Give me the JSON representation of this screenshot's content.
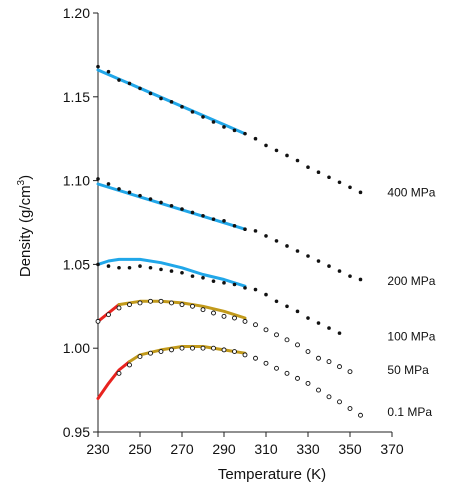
{
  "chart_data": {
    "type": "scatter",
    "xlabel": "Temperature (K)",
    "ylabel_main": "Density (g/cm",
    "ylabel_sup": "3",
    "ylabel_close": ")",
    "xlim": [
      230,
      370
    ],
    "ylim": [
      0.95,
      1.2
    ],
    "xticks": [
      {
        "value": 230,
        "label": "230"
      },
      {
        "value": 250,
        "label": "250"
      },
      {
        "value": 270,
        "label": "270"
      },
      {
        "value": 290,
        "label": "290"
      },
      {
        "value": 310,
        "label": "310"
      },
      {
        "value": 330,
        "label": "330"
      },
      {
        "value": 350,
        "label": "350"
      },
      {
        "value": 370,
        "label": "370"
      }
    ],
    "yticks": [
      {
        "value": 0.95,
        "label": "0.95"
      },
      {
        "value": 1.0,
        "label": "1.00"
      },
      {
        "value": 1.05,
        "label": "1.05"
      },
      {
        "value": 1.1,
        "label": "1.10"
      },
      {
        "value": 1.15,
        "label": "1.15"
      },
      {
        "value": 1.2,
        "label": "1.20"
      }
    ],
    "grid": false,
    "colors": {
      "blue": "#21a7e9",
      "gold": "#c29a1b",
      "red": "#e8231f",
      "dot": "#111111"
    },
    "series": [
      {
        "name": "400 MPa",
        "label_anchor": [
          364,
          1.093
        ],
        "marker": "filled",
        "points": [
          [
            230,
            1.168
          ],
          [
            235,
            1.165
          ],
          [
            240,
            1.16
          ],
          [
            245,
            1.158
          ],
          [
            250,
            1.155
          ],
          [
            255,
            1.152
          ],
          [
            260,
            1.149
          ],
          [
            265,
            1.147
          ],
          [
            270,
            1.144
          ],
          [
            275,
            1.141
          ],
          [
            280,
            1.138
          ],
          [
            285,
            1.135
          ],
          [
            290,
            1.132
          ],
          [
            295,
            1.13
          ],
          [
            300,
            1.128
          ],
          [
            305,
            1.125
          ],
          [
            310,
            1.121
          ],
          [
            315,
            1.118
          ],
          [
            320,
            1.115
          ],
          [
            325,
            1.112
          ],
          [
            330,
            1.108
          ],
          [
            335,
            1.105
          ],
          [
            340,
            1.102
          ],
          [
            345,
            1.099
          ],
          [
            350,
            1.096
          ],
          [
            355,
            1.093
          ]
        ],
        "lines": [
          {
            "color": "blue",
            "points": [
              [
                230,
                1.166
              ],
              [
                300,
                1.128
              ]
            ]
          }
        ]
      },
      {
        "name": "200 MPa",
        "label_anchor": [
          364,
          1.04
        ],
        "marker": "filled",
        "points": [
          [
            230,
            1.101
          ],
          [
            235,
            1.098
          ],
          [
            240,
            1.095
          ],
          [
            245,
            1.093
          ],
          [
            250,
            1.091
          ],
          [
            255,
            1.089
          ],
          [
            260,
            1.087
          ],
          [
            265,
            1.085
          ],
          [
            270,
            1.083
          ],
          [
            275,
            1.081
          ],
          [
            280,
            1.079
          ],
          [
            285,
            1.077
          ],
          [
            290,
            1.076
          ],
          [
            295,
            1.073
          ],
          [
            300,
            1.071
          ],
          [
            305,
            1.07
          ],
          [
            310,
            1.067
          ],
          [
            315,
            1.064
          ],
          [
            320,
            1.061
          ],
          [
            325,
            1.058
          ],
          [
            330,
            1.055
          ],
          [
            335,
            1.052
          ],
          [
            340,
            1.049
          ],
          [
            345,
            1.046
          ],
          [
            350,
            1.043
          ],
          [
            355,
            1.041
          ]
        ],
        "lines": [
          {
            "color": "blue",
            "points": [
              [
                230,
                1.098
              ],
              [
                300,
                1.071
              ]
            ]
          }
        ]
      },
      {
        "name": "100 MPa",
        "label_anchor": [
          364,
          1.007
        ],
        "marker": "filled",
        "points": [
          [
            230,
            1.05
          ],
          [
            235,
            1.049
          ],
          [
            240,
            1.048
          ],
          [
            245,
            1.048
          ],
          [
            250,
            1.049
          ],
          [
            255,
            1.048
          ],
          [
            260,
            1.047
          ],
          [
            265,
            1.046
          ],
          [
            270,
            1.045
          ],
          [
            275,
            1.043
          ],
          [
            280,
            1.042
          ],
          [
            285,
            1.04
          ],
          [
            290,
            1.039
          ],
          [
            295,
            1.038
          ],
          [
            300,
            1.036
          ],
          [
            305,
            1.035
          ],
          [
            310,
            1.032
          ],
          [
            315,
            1.028
          ],
          [
            320,
            1.025
          ],
          [
            325,
            1.022
          ],
          [
            330,
            1.018
          ],
          [
            335,
            1.015
          ],
          [
            340,
            1.012
          ],
          [
            345,
            1.009
          ]
        ],
        "lines": [
          {
            "color": "blue",
            "points": [
              [
                230,
                1.05
              ],
              [
                235,
                1.052
              ],
              [
                240,
                1.053
              ],
              [
                250,
                1.053
              ],
              [
                260,
                1.051
              ],
              [
                270,
                1.048
              ],
              [
                280,
                1.044
              ],
              [
                290,
                1.041
              ],
              [
                300,
                1.037
              ]
            ]
          }
        ]
      },
      {
        "name": "50 MPa",
        "label_anchor": [
          364,
          0.987
        ],
        "marker": "hollow",
        "points": [
          [
            230,
            1.016
          ],
          [
            235,
            1.02
          ],
          [
            240,
            1.024
          ],
          [
            245,
            1.026
          ],
          [
            250,
            1.027
          ],
          [
            255,
            1.028
          ],
          [
            260,
            1.028
          ],
          [
            265,
            1.027
          ],
          [
            270,
            1.026
          ],
          [
            275,
            1.025
          ],
          [
            280,
            1.023
          ],
          [
            285,
            1.021
          ],
          [
            290,
            1.019
          ],
          [
            295,
            1.018
          ],
          [
            300,
            1.016
          ],
          [
            305,
            1.014
          ],
          [
            310,
            1.011
          ],
          [
            315,
            1.008
          ],
          [
            320,
            1.005
          ],
          [
            325,
            1.002
          ],
          [
            330,
            0.998
          ],
          [
            335,
            0.994
          ],
          [
            340,
            0.992
          ],
          [
            345,
            0.989
          ],
          [
            350,
            0.986
          ]
        ],
        "lines": [
          {
            "color": "red",
            "points": [
              [
                230,
                1.016
              ],
              [
                235,
                1.021
              ],
              [
                240,
                1.026
              ]
            ]
          },
          {
            "color": "gold",
            "points": [
              [
                240,
                1.026
              ],
              [
                250,
                1.028
              ],
              [
                260,
                1.028
              ],
              [
                270,
                1.027
              ],
              [
                280,
                1.025
              ],
              [
                290,
                1.022
              ],
              [
                300,
                1.018
              ]
            ]
          }
        ]
      },
      {
        "name": "0.1 MPa",
        "label_anchor": [
          364,
          0.962
        ],
        "marker": "hollow",
        "points": [
          [
            240,
            0.985
          ],
          [
            245,
            0.99
          ],
          [
            250,
            0.995
          ],
          [
            255,
            0.997
          ],
          [
            260,
            0.998
          ],
          [
            265,
            0.999
          ],
          [
            270,
            1.0
          ],
          [
            275,
            1.0
          ],
          [
            280,
            1.0
          ],
          [
            285,
            1.0
          ],
          [
            290,
            0.999
          ],
          [
            295,
            0.998
          ],
          [
            300,
            0.996
          ],
          [
            305,
            0.994
          ],
          [
            310,
            0.991
          ],
          [
            315,
            0.988
          ],
          [
            320,
            0.985
          ],
          [
            325,
            0.982
          ],
          [
            330,
            0.979
          ],
          [
            335,
            0.975
          ],
          [
            340,
            0.971
          ],
          [
            345,
            0.968
          ],
          [
            350,
            0.964
          ],
          [
            355,
            0.96
          ]
        ],
        "lines": [
          {
            "color": "red",
            "points": [
              [
                230,
                0.97
              ],
              [
                235,
                0.979
              ],
              [
                240,
                0.987
              ],
              [
                245,
                0.992
              ]
            ]
          },
          {
            "color": "gold",
            "points": [
              [
                245,
                0.992
              ],
              [
                250,
                0.996
              ],
              [
                260,
                0.999
              ],
              [
                270,
                1.001
              ],
              [
                280,
                1.001
              ],
              [
                290,
                0.999
              ],
              [
                300,
                0.997
              ]
            ]
          }
        ]
      }
    ]
  }
}
